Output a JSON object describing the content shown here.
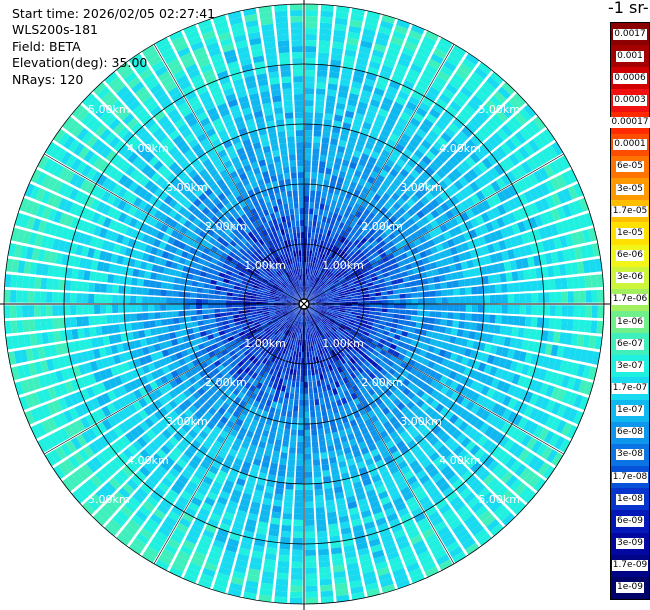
{
  "info": {
    "start_time": "Start time: 2026/02/05 02:27:41",
    "instrument": "WLS200s-181",
    "field": "Field: BETA",
    "elevation": "Elevation(deg): 35.00",
    "nrays": "NRays: 120"
  },
  "colorbar_title": "-1 sr-",
  "chart_data": {
    "type": "heatmap",
    "projection": "polar (PPI)",
    "range_rings": [
      {
        "range_km": 1.0,
        "label": "1.00km"
      },
      {
        "range_km": 2.0,
        "label": "2.00km"
      },
      {
        "range_km": 3.0,
        "label": "3.00km"
      },
      {
        "range_km": 4.0,
        "label": "4.00km"
      },
      {
        "range_km": 5.0,
        "label": "5.00km"
      }
    ],
    "max_range_km": 5.0,
    "n_rays": 120,
    "radial_lines_every_deg": 30,
    "colorbar": [
      {
        "label": "0.0017",
        "color": "#8b0000"
      },
      {
        "label": "0.001",
        "color": "#a50000"
      },
      {
        "label": "0.0006",
        "color": "#d00000"
      },
      {
        "label": "0.0003",
        "color": "#f01010"
      },
      {
        "label": "0.00017",
        "color": "#ff2a00"
      },
      {
        "label": "0.0001",
        "color": "#ff4d00"
      },
      {
        "label": "6e-05",
        "color": "#ff7300"
      },
      {
        "label": "3e-05",
        "color": "#ff9900"
      },
      {
        "label": "1.7e-05",
        "color": "#ffbf00"
      },
      {
        "label": "1e-05",
        "color": "#ffe000"
      },
      {
        "label": "6e-06",
        "color": "#f2f51a"
      },
      {
        "label": "3e-06",
        "color": "#cdf53b"
      },
      {
        "label": "1.7e-06",
        "color": "#a2f060"
      },
      {
        "label": "1e-06",
        "color": "#6ff08a"
      },
      {
        "label": "6e-07",
        "color": "#3ff0bc"
      },
      {
        "label": "3e-07",
        "color": "#1ff0e0"
      },
      {
        "label": "1.7e-07",
        "color": "#18daf0"
      },
      {
        "label": "1e-07",
        "color": "#10b8f0"
      },
      {
        "label": "6e-08",
        "color": "#0d96ec"
      },
      {
        "label": "3e-08",
        "color": "#0a74e4"
      },
      {
        "label": "1.7e-08",
        "color": "#0852da"
      },
      {
        "label": "1e-08",
        "color": "#0634cc"
      },
      {
        "label": "6e-09",
        "color": "#0418b8"
      },
      {
        "label": "3e-09",
        "color": "#0208a0"
      },
      {
        "label": "1.7e-09",
        "color": "#010585"
      },
      {
        "label": "1e-09",
        "color": "#00036a"
      }
    ],
    "range_profile": [
      {
        "range_km": 0.0,
        "level": "1e-08"
      },
      {
        "range_km": 1.0,
        "level": "1e-08"
      },
      {
        "range_km": 1.5,
        "level": "3e-08"
      },
      {
        "range_km": 2.0,
        "level": "6e-08"
      },
      {
        "range_km": 3.0,
        "level": "1e-07"
      },
      {
        "range_km": 4.0,
        "level": "1.7e-07"
      },
      {
        "range_km": 5.0,
        "level": "3e-07"
      }
    ]
  }
}
